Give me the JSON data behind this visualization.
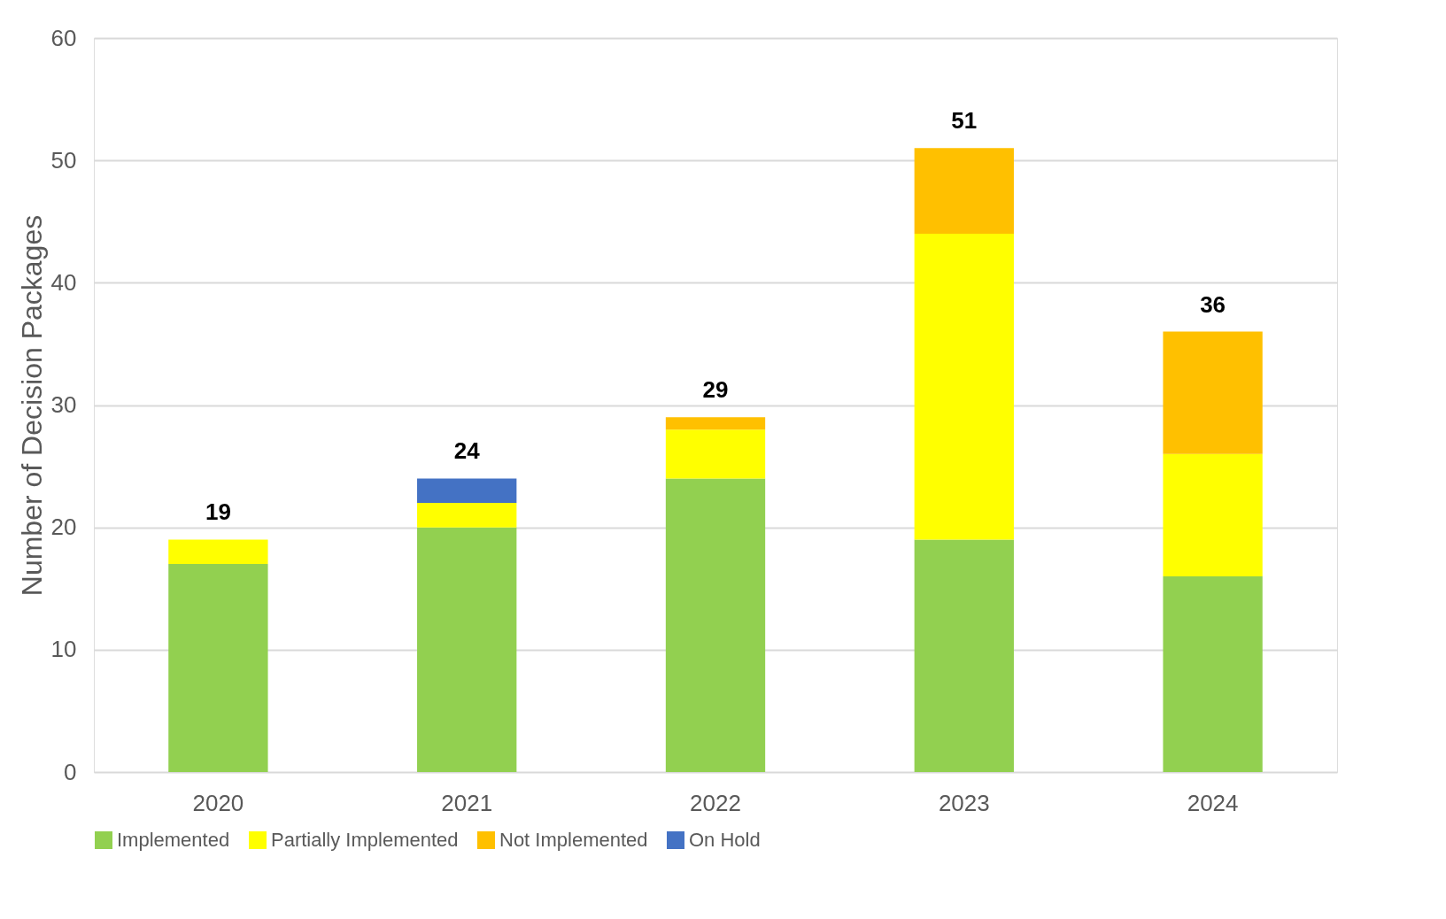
{
  "chart_data": {
    "type": "bar",
    "stacked": true,
    "ylabel": "Number of Decision Packages",
    "categories": [
      "2020",
      "2021",
      "2022",
      "2023",
      "2024"
    ],
    "series": [
      {
        "name": "Implemented",
        "color": "#92d050",
        "values": [
          17,
          20,
          24,
          19,
          16
        ]
      },
      {
        "name": "Partially Implemented",
        "color": "#ffff00",
        "values": [
          2,
          2,
          4,
          25,
          10
        ]
      },
      {
        "name": "Not Implemented",
        "color": "#ffc000",
        "values": [
          null,
          null,
          1,
          7,
          10
        ]
      },
      {
        "name": "On Hold",
        "color": "#4472c4",
        "values": [
          null,
          2,
          null,
          null,
          null
        ]
      }
    ],
    "totals": [
      "19",
      "24",
      "29",
      "51",
      "36"
    ],
    "ylim": [
      0,
      60
    ],
    "yticks": [
      0,
      10,
      20,
      30,
      40,
      50,
      60
    ],
    "grid": "y",
    "legend": "bottom"
  }
}
